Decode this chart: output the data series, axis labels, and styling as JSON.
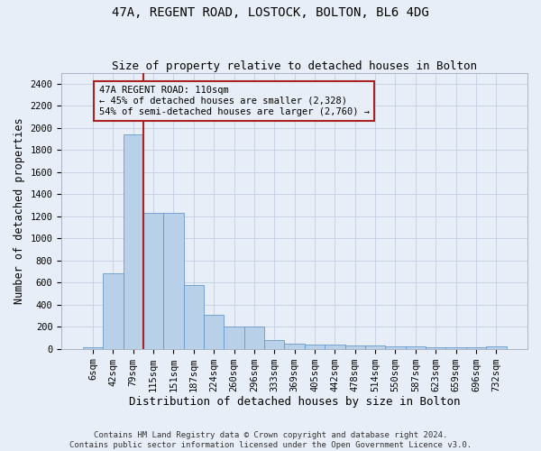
{
  "title": "47A, REGENT ROAD, LOSTOCK, BOLTON, BL6 4DG",
  "subtitle": "Size of property relative to detached houses in Bolton",
  "xlabel": "Distribution of detached houses by size in Bolton",
  "ylabel": "Number of detached properties",
  "footer_line1": "Contains HM Land Registry data © Crown copyright and database right 2024.",
  "footer_line2": "Contains public sector information licensed under the Open Government Licence v3.0.",
  "bar_labels": [
    "6sqm",
    "42sqm",
    "79sqm",
    "115sqm",
    "151sqm",
    "187sqm",
    "224sqm",
    "260sqm",
    "296sqm",
    "333sqm",
    "369sqm",
    "405sqm",
    "442sqm",
    "478sqm",
    "514sqm",
    "550sqm",
    "587sqm",
    "623sqm",
    "659sqm",
    "696sqm",
    "732sqm"
  ],
  "bar_values": [
    10,
    680,
    1940,
    1230,
    1230,
    580,
    310,
    200,
    200,
    78,
    46,
    36,
    36,
    28,
    28,
    20,
    20,
    14,
    14,
    14,
    20
  ],
  "bar_color": "#b8d0e8",
  "bar_edge_color": "#6699cc",
  "annotation_text": "47A REGENT ROAD: 110sqm\n← 45% of detached houses are smaller (2,328)\n54% of semi-detached houses are larger (2,760) →",
  "vline_index": 2.5,
  "vline_color": "#aa2222",
  "annotation_box_color": "#aa2222",
  "ylim": [
    0,
    2500
  ],
  "yticks": [
    0,
    200,
    400,
    600,
    800,
    1000,
    1200,
    1400,
    1600,
    1800,
    2000,
    2200,
    2400
  ],
  "grid_color": "#c8d4e4",
  "background_color": "#e8eef8",
  "title_fontsize": 10,
  "subtitle_fontsize": 9,
  "axis_label_fontsize": 8.5,
  "tick_fontsize": 7.5,
  "footer_fontsize": 6.5
}
